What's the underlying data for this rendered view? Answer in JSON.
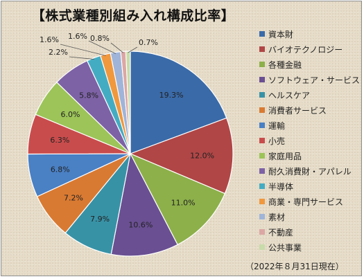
{
  "chart_data": {
    "type": "pie",
    "title": "【株式業種別組み入れ構成比率】",
    "date_note": "（2022年８月31日現在）",
    "legend_position": "right",
    "start_angle_deg": 0,
    "direction": "clockwise",
    "slices": [
      {
        "name": "資本財",
        "value": 19.3,
        "label": "19.3%",
        "color": "#3a6aa8"
      },
      {
        "name": "バイオテクノロジー",
        "value": 12.0,
        "label": "12.0%",
        "color": "#b04646"
      },
      {
        "name": "各種金融",
        "value": 11.0,
        "label": "11.0%",
        "color": "#8db04a"
      },
      {
        "name": "ソフトウェア・サービス",
        "value": 10.6,
        "label": "10.6%",
        "color": "#6a4f92"
      },
      {
        "name": "ヘルスケア",
        "value": 7.9,
        "label": "7.9%",
        "color": "#3892a6"
      },
      {
        "name": "消費者サービス",
        "value": 7.2,
        "label": "7.2%",
        "color": "#d97a32"
      },
      {
        "name": "運輸",
        "value": 6.8,
        "label": "6.8%",
        "color": "#4a80c4"
      },
      {
        "name": "小売",
        "value": 6.3,
        "label": "6.3%",
        "color": "#c94c4c"
      },
      {
        "name": "家庭用品",
        "value": 6.0,
        "label": "6.0%",
        "color": "#9cc458"
      },
      {
        "name": "耐久消費財・アパレル",
        "value": 5.8,
        "label": "5.8%",
        "color": "#7d62a6"
      },
      {
        "name": "半導体",
        "value": 2.2,
        "label": "2.2%",
        "color": "#44acc2"
      },
      {
        "name": "商業・専門サービス",
        "value": 1.6,
        "label": "1.6%",
        "color": "#f0983e"
      },
      {
        "name": "素材",
        "value": 1.6,
        "label": "1.6%",
        "color": "#9fb4d8"
      },
      {
        "name": "不動産",
        "value": 0.8,
        "label": "0.8%",
        "color": "#dba7a4"
      },
      {
        "name": "公共事業",
        "value": 0.7,
        "label": "0.7%",
        "color": "#c8dbaa"
      }
    ]
  }
}
